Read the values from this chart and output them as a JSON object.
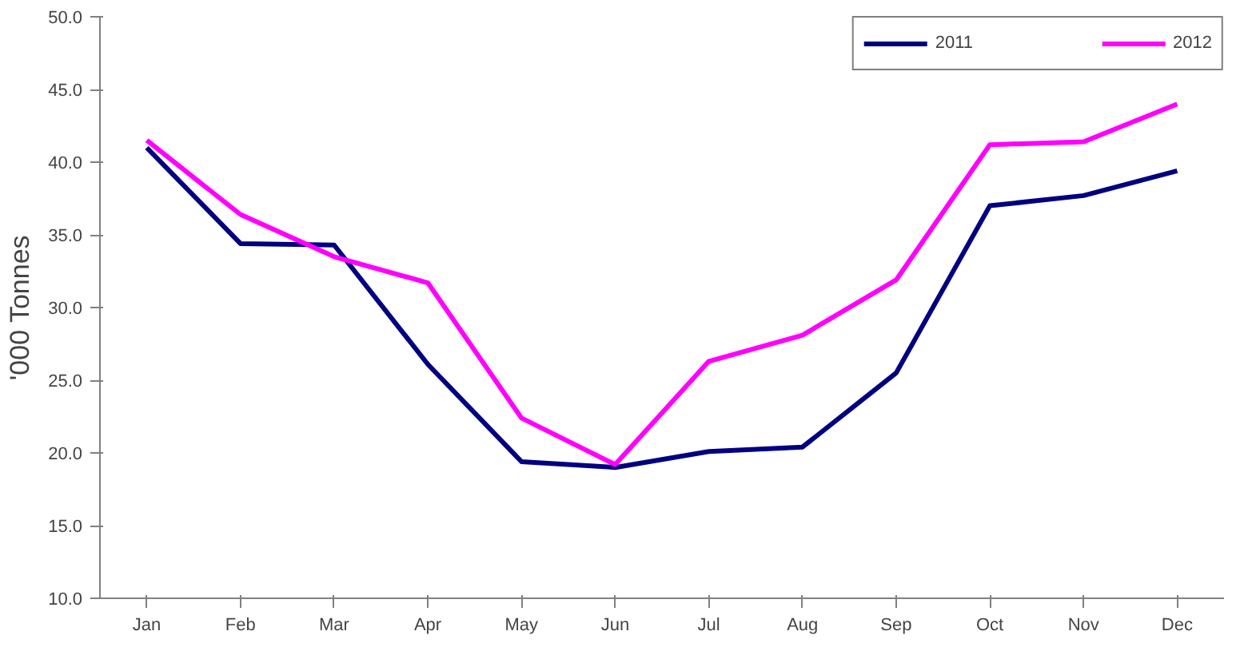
{
  "chart_data": {
    "type": "line",
    "ylabel": "'000 Tonnes",
    "categories": [
      "Jan",
      "Feb",
      "Mar",
      "Apr",
      "May",
      "Jun",
      "Jul",
      "Aug",
      "Sep",
      "Oct",
      "Nov",
      "Dec"
    ],
    "series": [
      {
        "name": "2011",
        "color": "#000080",
        "values": [
          41.0,
          34.4,
          34.3,
          26.1,
          19.4,
          19.0,
          20.1,
          20.4,
          25.5,
          37.0,
          37.7,
          39.4
        ]
      },
      {
        "name": "2012",
        "color": "#ff00ff",
        "values": [
          41.5,
          36.4,
          33.5,
          31.7,
          22.4,
          19.2,
          26.3,
          28.1,
          31.9,
          41.2,
          41.4,
          44.0
        ]
      }
    ],
    "ylim": [
      10,
      50
    ],
    "yticks": [
      {
        "value": 10,
        "label": "10.0"
      },
      {
        "value": 15,
        "label": "15.0"
      },
      {
        "value": 20,
        "label": "20.0"
      },
      {
        "value": 25,
        "label": "25.0"
      },
      {
        "value": 30,
        "label": "30.0"
      },
      {
        "value": 35,
        "label": "35.0"
      },
      {
        "value": 40,
        "label": "40.0"
      },
      {
        "value": 45,
        "label": "45.0"
      },
      {
        "value": 50,
        "label": "50.0"
      }
    ],
    "grid": false,
    "legend": "top right",
    "line_style": "solid"
  }
}
